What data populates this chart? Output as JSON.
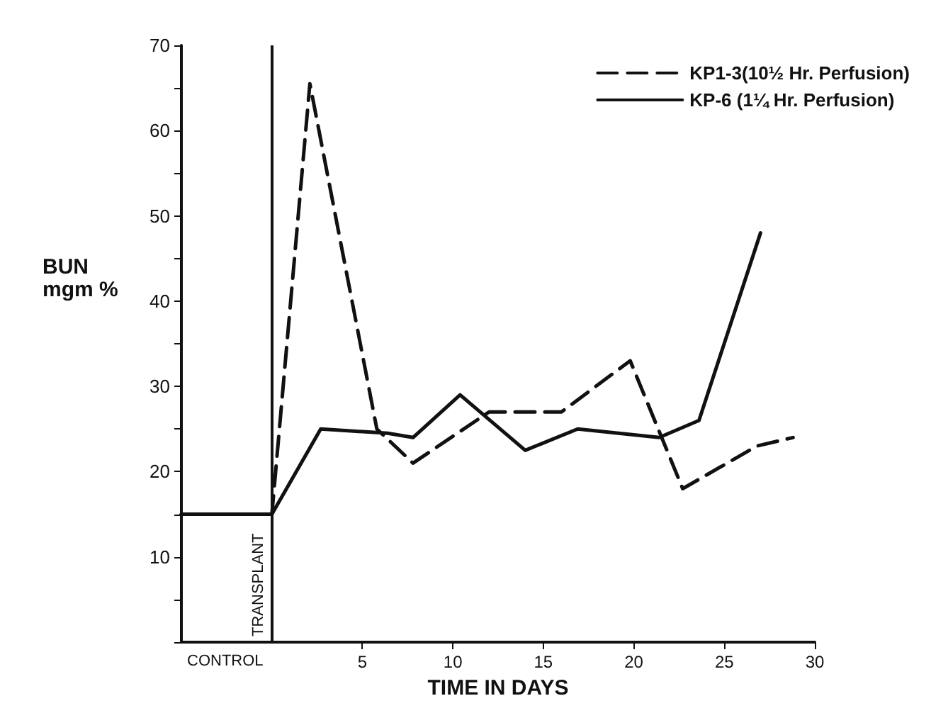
{
  "chart_data": {
    "type": "line",
    "xlabel": "TIME IN DAYS",
    "ylabel": "BUN\nmgm %",
    "xlim": [
      -5,
      30
    ],
    "xticks": [
      5,
      10,
      15,
      20,
      25,
      30
    ],
    "ylim": [
      0,
      70
    ],
    "yticks": [
      {
        "value": 0,
        "label": null
      },
      {
        "value": 5,
        "label": null
      },
      10,
      {
        "value": 15,
        "label": null
      },
      20,
      {
        "value": 25,
        "label": null
      },
      30,
      {
        "value": 35,
        "label": null
      },
      40,
      {
        "value": 45,
        "label": null
      },
      50,
      {
        "value": 55,
        "label": null
      },
      60,
      {
        "value": 65,
        "label": null
      },
      70
    ],
    "series": [
      {
        "name": "KP1-3(10½ Hr. Perfusion)",
        "color": "#111111",
        "line_style": "dashed",
        "x": [
          -5,
          0,
          2.1,
          5.8,
          7.8,
          12,
          16,
          19.8,
          22.7,
          26.8,
          28.8
        ],
        "values": [
          15,
          15,
          65.5,
          25,
          21,
          27,
          27,
          33,
          18,
          23,
          24
        ]
      },
      {
        "name": "KP-6 (1¼ Hr. Perfusion)",
        "color": "#111111",
        "line_style": "solid",
        "x": [
          -5,
          0,
          2.7,
          6.4,
          7.8,
          10.4,
          14,
          16.9,
          21.4,
          23.6,
          27
        ],
        "values": [
          15,
          15,
          25,
          24.5,
          24,
          29,
          22.5,
          25,
          24,
          26,
          48
        ]
      }
    ],
    "ref_lines": [
      {
        "axis": "x",
        "value": 0,
        "label": "TRANSPLANT",
        "color": "#111111"
      }
    ],
    "annotations": [
      "CONTROL"
    ],
    "legend": "top right",
    "grid": false,
    "marker": "none"
  }
}
